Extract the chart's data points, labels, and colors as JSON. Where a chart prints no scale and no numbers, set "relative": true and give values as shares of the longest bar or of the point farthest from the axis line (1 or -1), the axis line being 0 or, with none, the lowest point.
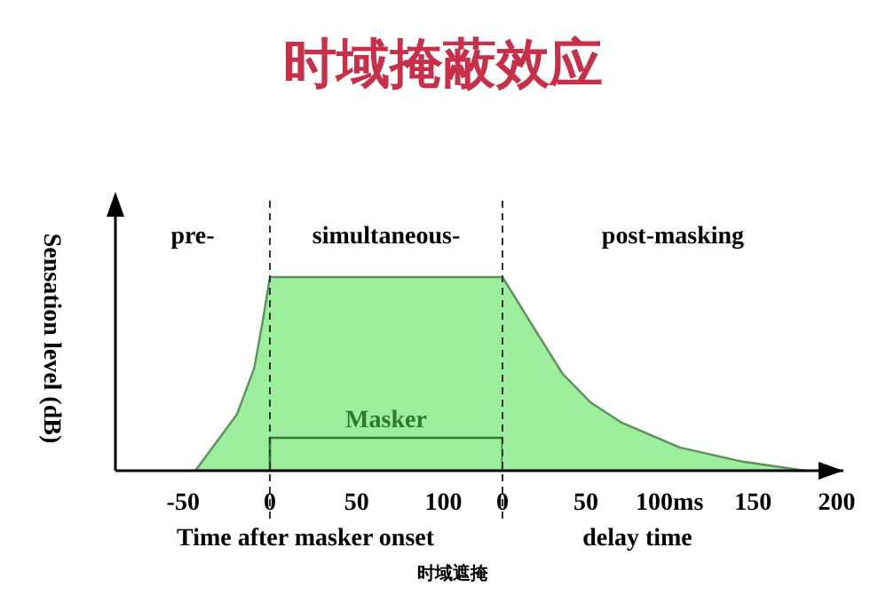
{
  "chart_data": [
    {
      "type": "area",
      "title": "时域掩蔽效应",
      "ylabel": "Sensation level (dB)",
      "xlabel": "Time after masker onset",
      "relative": true,
      "xlim": [
        -89,
        134
      ],
      "xticks": [
        -50,
        0,
        50,
        100
      ],
      "series": [
        {
          "color": "#9cee9c",
          "x": [
            -43,
            -19,
            -9,
            -4,
            0,
            134
          ],
          "values": [
            0,
            0.29,
            0.53,
            0.78,
            1,
            1
          ]
        },
        {
          "name": "Masker",
          "type": "line",
          "color": "#2f7a2f",
          "x": [
            0,
            0,
            134,
            134
          ],
          "values": [
            0,
            0.17,
            0.17,
            0
          ]
        }
      ],
      "ref_lines": [
        {
          "axis": "x",
          "value": 0,
          "line_style": "dashed",
          "color": "#333333"
        }
      ],
      "annotations": [
        "pre-",
        "simultaneous-",
        "时域遮掩"
      ]
    },
    {
      "type": "area",
      "xlabel": "delay time",
      "relative": true,
      "xlim": [
        0,
        204
      ],
      "xticks": [
        0,
        50,
        {
          "value": 100,
          "label": "100ms"
        },
        150,
        200
      ],
      "series": [
        {
          "color": "#9cee9c",
          "x": [
            0,
            18,
            36,
            53,
            71,
            106,
            142,
            181
          ],
          "values": [
            1,
            0.75,
            0.5,
            0.35,
            0.25,
            0.12,
            0.05,
            0
          ]
        }
      ],
      "ref_lines": [
        {
          "axis": "x",
          "value": 0,
          "line_style": "dashed",
          "color": "#333333"
        }
      ],
      "annotations": [
        "post-masking"
      ]
    }
  ]
}
